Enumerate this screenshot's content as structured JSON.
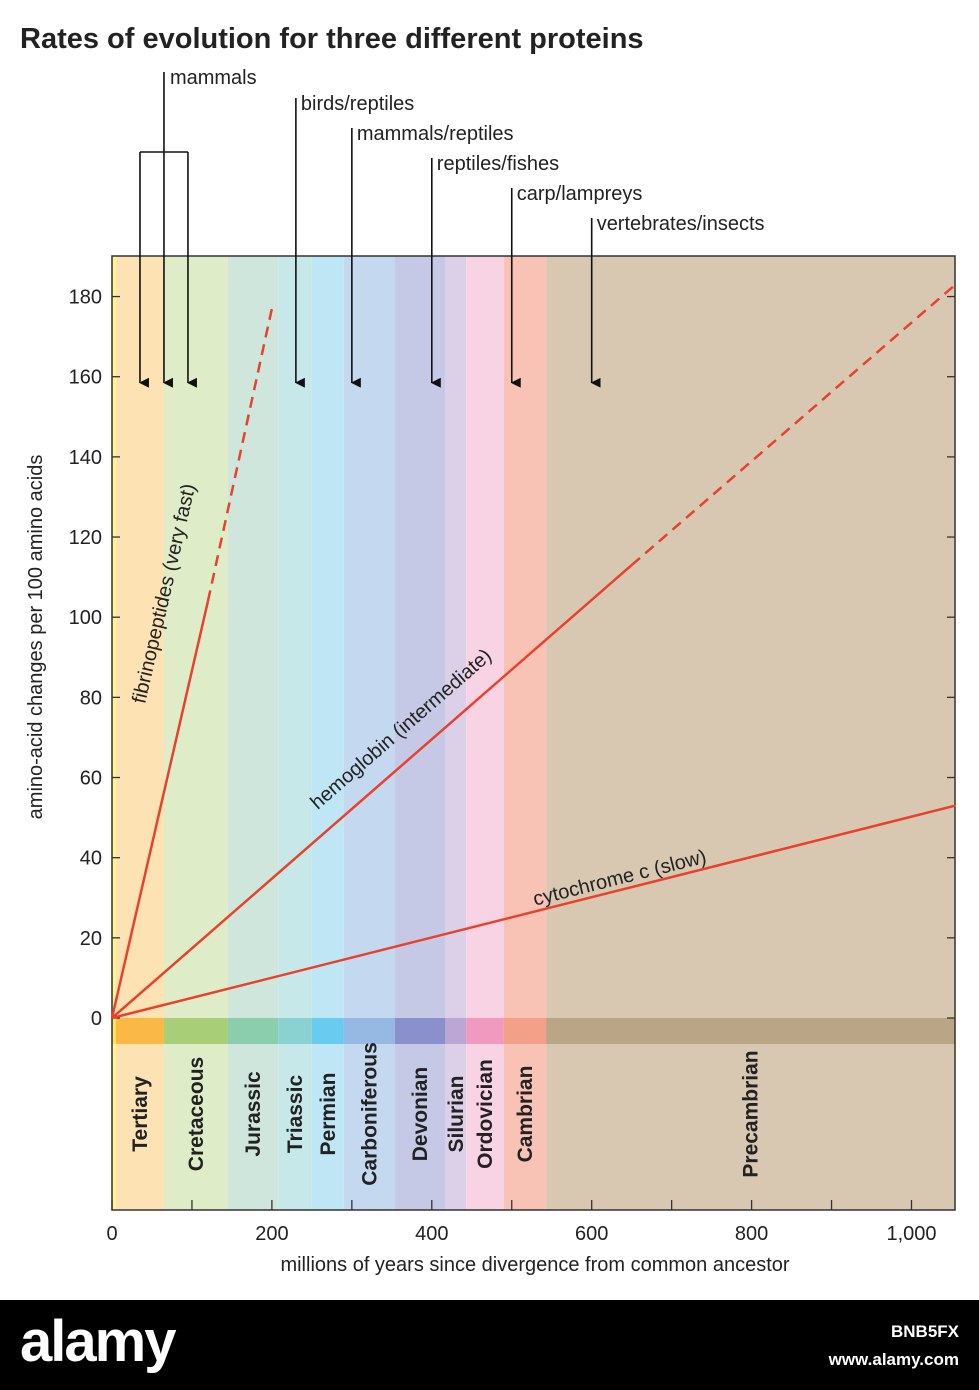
{
  "chart_data": {
    "type": "line",
    "title": "Rates of evolution for three different proteins",
    "xlabel": "millions of years since divergence from common ancestor",
    "ylabel": "amino-acid changes per 100 amino acids",
    "xlim": [
      0,
      1055
    ],
    "ylim": [
      0,
      190
    ],
    "x_ticks": [
      0,
      200,
      400,
      600,
      800,
      1000
    ],
    "x_tick_labels": [
      "0",
      "200",
      "400",
      "600",
      "800",
      "1,000"
    ],
    "y_ticks": [
      0,
      20,
      40,
      60,
      80,
      100,
      120,
      140,
      160,
      180
    ],
    "y_tick_labels": [
      "0",
      "20",
      "40",
      "60",
      "80",
      "100",
      "120",
      "140",
      "160",
      "180"
    ],
    "series": [
      {
        "name": "fibrinopeptides (very fast)",
        "points": [
          [
            0,
            0
          ],
          [
            120,
            104
          ]
        ],
        "dashed_to": [
          200,
          177
        ],
        "color": "#e8412c"
      },
      {
        "name": "hemoglobin (intermediate)",
        "points": [
          [
            0,
            0
          ],
          [
            650,
            113
          ]
        ],
        "dashed_to": [
          1055,
          183
        ],
        "color": "#e8412c"
      },
      {
        "name": "cytochrome c (slow)",
        "points": [
          [
            0,
            0
          ],
          [
            1055,
            53
          ]
        ],
        "color": "#e8412c"
      }
    ],
    "periods": [
      {
        "name": "",
        "start": 0,
        "end": 5,
        "color": "#fff58a",
        "bar": "#ffe14d"
      },
      {
        "name": "Tertiary",
        "start": 5,
        "end": 65,
        "color": "#fde3b4",
        "bar": "#f9b233"
      },
      {
        "name": "Cretaceous",
        "start": 65,
        "end": 145,
        "color": "#dfecc8",
        "bar": "#9fc96a"
      },
      {
        "name": "Jurassic",
        "start": 145,
        "end": 208,
        "color": "#cfe6dc",
        "bar": "#7fc9a6"
      },
      {
        "name": "Triassic",
        "start": 208,
        "end": 250,
        "color": "#c7e8e8",
        "bar": "#7fcccc"
      },
      {
        "name": "Permian",
        "start": 250,
        "end": 290,
        "color": "#bfe6f4",
        "bar": "#5bc5ee"
      },
      {
        "name": "Carboniferous",
        "start": 290,
        "end": 354,
        "color": "#c4d8ef",
        "bar": "#8eb4e0"
      },
      {
        "name": "Devonian",
        "start": 354,
        "end": 417,
        "color": "#c5c9e6",
        "bar": "#7f86c7"
      },
      {
        "name": "Silurian",
        "start": 417,
        "end": 443,
        "color": "#dccfe8",
        "bar": "#b6a0d0"
      },
      {
        "name": "Ordovician",
        "start": 443,
        "end": 490,
        "color": "#f8d3e4",
        "bar": "#ee8fba"
      },
      {
        "name": "Cambrian",
        "start": 490,
        "end": 543,
        "color": "#f8c3b5",
        "bar": "#f29a80"
      },
      {
        "name": "Precambrian",
        "start": 543,
        "end": 1055,
        "color": "#d8c8b1",
        "bar": "#b59f7f"
      }
    ],
    "divergence_markers": [
      {
        "label": "mammals",
        "x": [
          35,
          65,
          95
        ],
        "bracket": true
      },
      {
        "label": "birds/reptiles",
        "x": 230
      },
      {
        "label": "mammals/reptiles",
        "x": 300
      },
      {
        "label": "reptiles/fishes",
        "x": 400
      },
      {
        "label": "carp/lampreys",
        "x": 500
      },
      {
        "label": "vertebrates/insects",
        "x": 600
      }
    ],
    "grid": false,
    "legend": "none"
  },
  "watermark": {
    "brand": "alamy",
    "image_id": "BNB5FX",
    "url": "www.alamy.com"
  }
}
